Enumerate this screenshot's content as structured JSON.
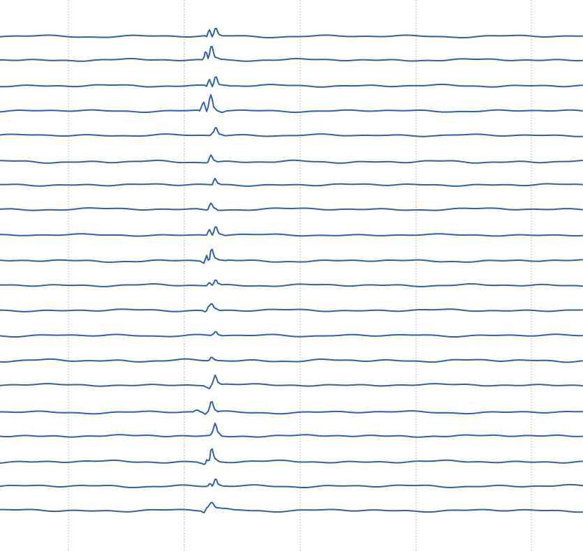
{
  "chart_data": {
    "type": "line",
    "title": "",
    "xlabel": "",
    "ylabel": "",
    "x_range": [
      0,
      835
    ],
    "grid": {
      "vertical": true,
      "horizontal": false
    },
    "x_grid_positions": [
      98,
      264,
      430,
      596,
      761
    ],
    "legend": "none",
    "colors": {
      "trace": "#2e5fae",
      "grid": "#bdbdbd",
      "background": "#ffffff"
    },
    "series": [
      {
        "baseline": 52,
        "event": [
          [
            295,
            2
          ],
          [
            300,
            -9
          ],
          [
            304,
            1
          ],
          [
            309,
            -12
          ],
          [
            314,
            -2
          ],
          [
            320,
            0
          ]
        ]
      },
      {
        "baseline": 86,
        "event": [
          [
            290,
            2
          ],
          [
            295,
            -13
          ],
          [
            298,
            -2
          ],
          [
            303,
            -21
          ],
          [
            308,
            -4
          ],
          [
            318,
            -1
          ],
          [
            330,
            0
          ]
        ]
      },
      {
        "baseline": 123,
        "event": [
          [
            295,
            2
          ],
          [
            300,
            -9
          ],
          [
            304,
            1
          ],
          [
            309,
            -14
          ],
          [
            314,
            -2
          ],
          [
            322,
            -1
          ],
          [
            330,
            0
          ]
        ]
      },
      {
        "baseline": 159,
        "event": [
          [
            285,
            1
          ],
          [
            292,
            -12
          ],
          [
            296,
            1
          ],
          [
            302,
            -23
          ],
          [
            307,
            -4
          ],
          [
            312,
            0
          ],
          [
            318,
            2
          ],
          [
            325,
            0
          ]
        ]
      },
      {
        "baseline": 194,
        "event": [
          [
            300,
            1
          ],
          [
            305,
            -4
          ],
          [
            309,
            -12
          ],
          [
            314,
            -2
          ],
          [
            322,
            0
          ]
        ]
      },
      {
        "baseline": 232,
        "event": [
          [
            297,
            1
          ],
          [
            302,
            -10
          ],
          [
            307,
            -2
          ],
          [
            312,
            0
          ]
        ]
      },
      {
        "baseline": 265,
        "event": [
          [
            303,
            1
          ],
          [
            308,
            -9
          ],
          [
            312,
            -2
          ],
          [
            318,
            0
          ]
        ]
      },
      {
        "baseline": 300,
        "event": [
          [
            285,
            0
          ],
          [
            297,
            1
          ],
          [
            302,
            -9
          ],
          [
            307,
            -2
          ],
          [
            312,
            0
          ]
        ]
      },
      {
        "baseline": 337,
        "event": [
          [
            295,
            1
          ],
          [
            300,
            -8
          ],
          [
            304,
            0
          ],
          [
            309,
            -13
          ],
          [
            314,
            -2
          ],
          [
            322,
            0
          ]
        ]
      },
      {
        "baseline": 374,
        "event": [
          [
            287,
            1
          ],
          [
            292,
            3
          ],
          [
            296,
            -8
          ],
          [
            299,
            1
          ],
          [
            303,
            -18
          ],
          [
            308,
            -4
          ],
          [
            315,
            -1
          ],
          [
            325,
            0
          ]
        ]
      },
      {
        "baseline": 409,
        "event": [
          [
            295,
            1
          ],
          [
            300,
            -4
          ],
          [
            304,
            0
          ],
          [
            309,
            -8
          ],
          [
            313,
            -2
          ],
          [
            320,
            0
          ]
        ]
      },
      {
        "baseline": 445,
        "event": [
          [
            290,
            1
          ],
          [
            295,
            2
          ],
          [
            298,
            -5
          ],
          [
            303,
            -10
          ],
          [
            308,
            -3
          ],
          [
            315,
            0
          ]
        ]
      },
      {
        "baseline": 481,
        "event": [
          [
            302,
            1
          ],
          [
            305,
            -2
          ],
          [
            309,
            -6
          ],
          [
            313,
            -1
          ],
          [
            318,
            0
          ]
        ]
      },
      {
        "baseline": 517,
        "event": [
          [
            298,
            1
          ],
          [
            303,
            -5
          ],
          [
            308,
            -1
          ],
          [
            313,
            0
          ]
        ]
      },
      {
        "baseline": 552,
        "event": [
          [
            290,
            0
          ],
          [
            296,
            3
          ],
          [
            300,
            5
          ],
          [
            304,
            -2
          ],
          [
            308,
            -14
          ],
          [
            313,
            -3
          ],
          [
            318,
            0
          ]
        ]
      },
      {
        "baseline": 591,
        "event": [
          [
            275,
            0
          ],
          [
            282,
            -3
          ],
          [
            289,
            0
          ],
          [
            294,
            3
          ],
          [
            298,
            -1
          ],
          [
            303,
            -16
          ],
          [
            308,
            -3
          ],
          [
            313,
            0
          ]
        ]
      },
      {
        "baseline": 625,
        "event": [
          [
            300,
            1
          ],
          [
            304,
            -5
          ],
          [
            308,
            -18
          ],
          [
            313,
            -4
          ],
          [
            318,
            0
          ]
        ]
      },
      {
        "baseline": 662,
        "event": [
          [
            280,
            0
          ],
          [
            288,
            2
          ],
          [
            293,
            4
          ],
          [
            297,
            -4
          ],
          [
            299,
            1
          ],
          [
            303,
            -20
          ],
          [
            308,
            -4
          ],
          [
            315,
            0
          ]
        ]
      },
      {
        "baseline": 697,
        "event": [
          [
            296,
            1
          ],
          [
            301,
            -4
          ],
          [
            304,
            0
          ],
          [
            309,
            -11
          ],
          [
            313,
            -2
          ],
          [
            320,
            0
          ]
        ]
      },
      {
        "baseline": 732,
        "event": [
          [
            288,
            1
          ],
          [
            292,
            3
          ],
          [
            297,
            -5
          ],
          [
            303,
            -12
          ],
          [
            310,
            -4
          ],
          [
            320,
            -3
          ],
          [
            340,
            -1
          ],
          [
            360,
            0
          ]
        ]
      }
    ]
  }
}
